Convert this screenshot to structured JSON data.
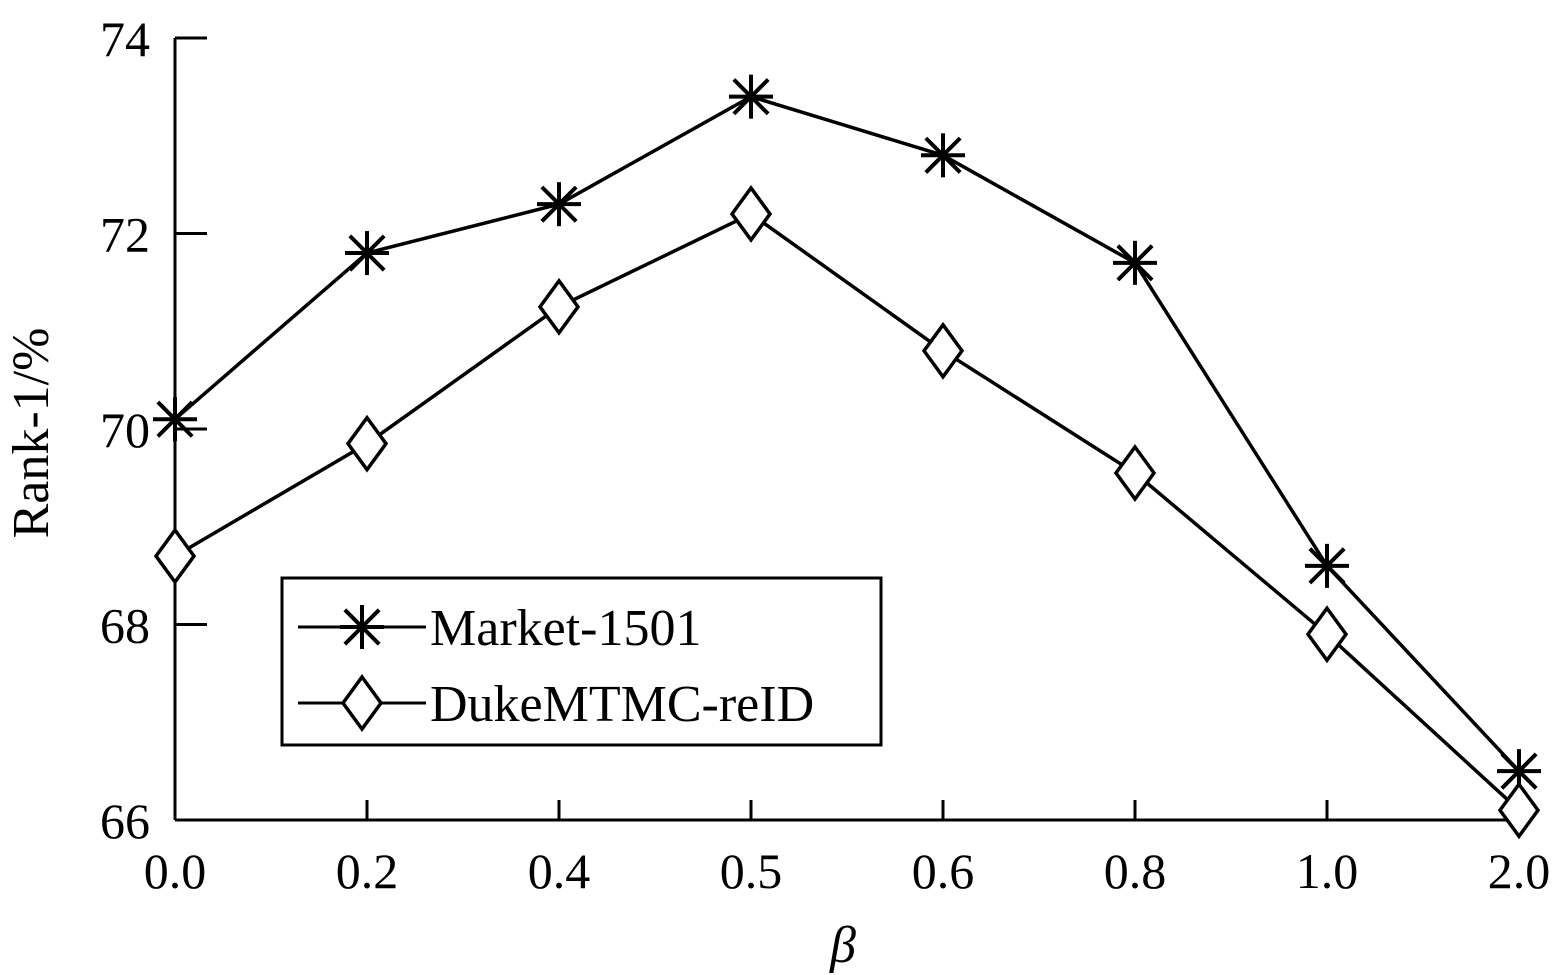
{
  "chart_data": {
    "type": "line",
    "categories": [
      "0.0",
      "0.2",
      "0.4",
      "0.5",
      "0.6",
      "0.8",
      "1.0",
      "2.0"
    ],
    "xlabel": "β",
    "ylabel": "Rank-1/%",
    "ylim": [
      66,
      74
    ],
    "yticks": [
      "66",
      "68",
      "70",
      "72",
      "74"
    ],
    "grid": false,
    "legend_position": "lower-left",
    "series": [
      {
        "name": "Market-1501",
        "marker": "asterisk",
        "values": [
          70.1,
          71.8,
          72.3,
          73.4,
          72.8,
          71.7,
          68.6,
          66.5
        ]
      },
      {
        "name": "DukeMTMC-reID",
        "marker": "diamond",
        "values": [
          68.7,
          69.85,
          71.25,
          72.2,
          70.8,
          69.55,
          67.9,
          66.1
        ]
      }
    ]
  }
}
